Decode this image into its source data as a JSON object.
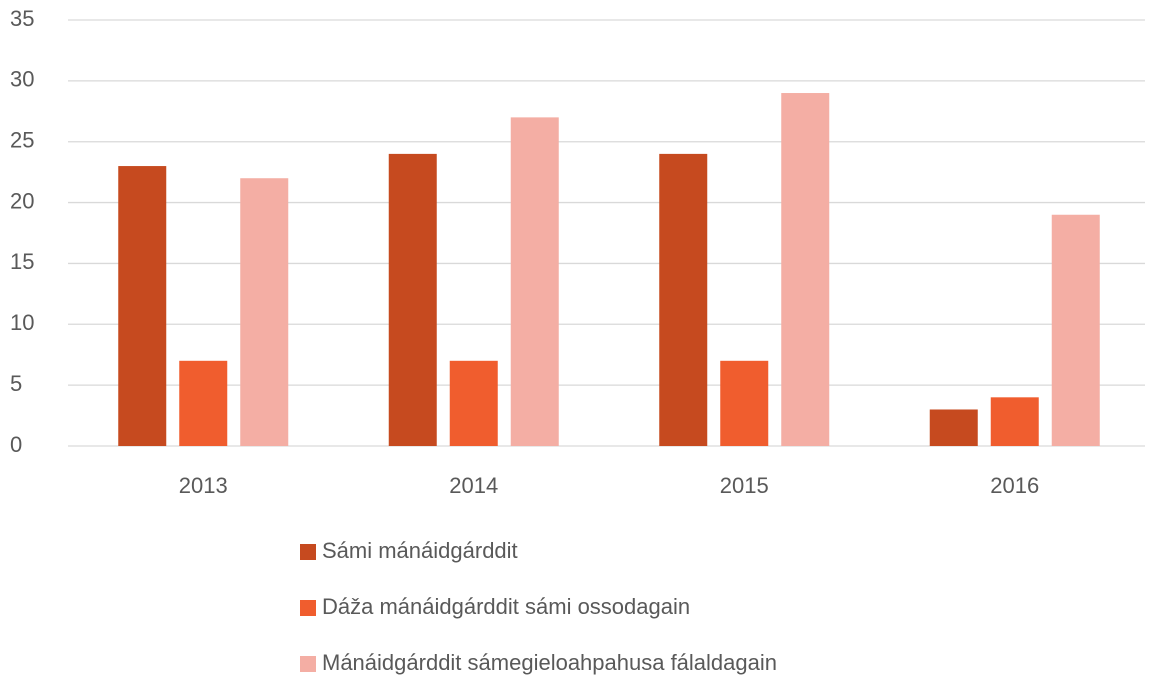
{
  "chart_data": {
    "type": "bar",
    "categories": [
      "2013",
      "2014",
      "2015",
      "2016"
    ],
    "series": [
      {
        "name": "Sámi mánáidgárddit",
        "color": "#c64a1f",
        "values": [
          23,
          24,
          24,
          3
        ]
      },
      {
        "name": "Dáža mánáidgárddit sámi ossodagain",
        "color": "#f05d2e",
        "values": [
          7,
          7,
          7,
          4
        ]
      },
      {
        "name": "Mánáidgárddit sámegieloahpahusa fálaldagain",
        "color": "#f4aea4",
        "values": [
          22,
          27,
          29,
          19
        ]
      }
    ],
    "ylim": [
      0,
      35
    ],
    "yticks": [
      0,
      5,
      10,
      15,
      20,
      25,
      30,
      35
    ],
    "grid": true,
    "legend": "bottom"
  }
}
